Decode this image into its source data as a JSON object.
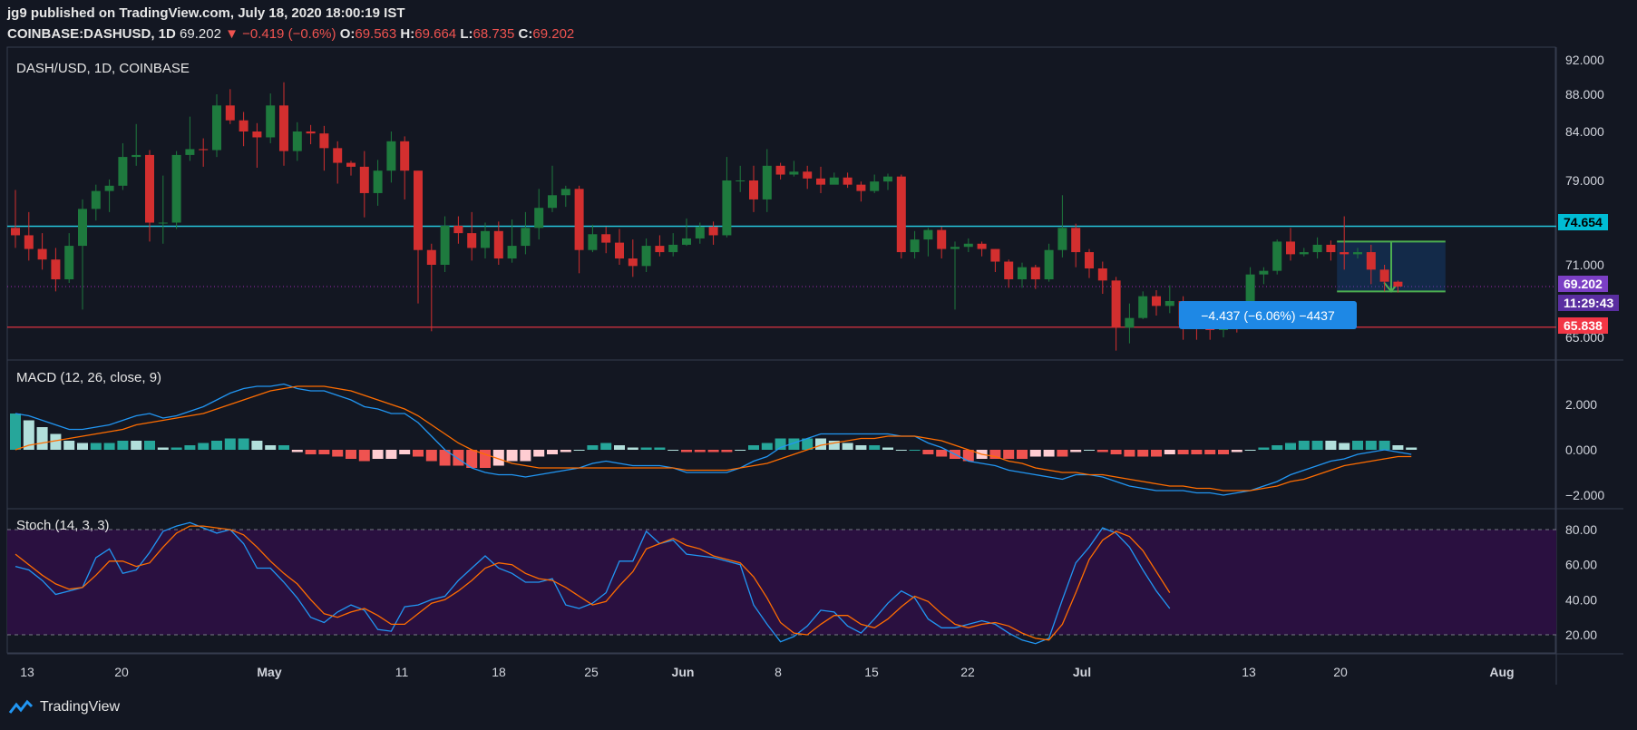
{
  "header": {
    "publisher_line": "jg9 published on TradingView.com, July 18, 2020 18:00:19 IST",
    "symbol": "COINBASE:DASHUSD, 1D",
    "last": "69.202",
    "change": "▼ −0.419 (−0.6%)",
    "o_label": "O:",
    "o": "69.563",
    "h_label": "H:",
    "h": "69.664",
    "l_label": "L:",
    "l": "68.735",
    "c_label": "C:",
    "c": "69.202"
  },
  "price_panel": {
    "title": "DASH/USD, 1D, COINBASE",
    "yticks": [
      92.0,
      88.0,
      84.0,
      79.0,
      71.0,
      65.0
    ],
    "ytick_labels": [
      "92.000",
      "88.000",
      "84.000",
      "79.000",
      "71.000",
      "65.000"
    ],
    "resistance": {
      "value": 74.654,
      "label": "74.654",
      "color": "#26c6da"
    },
    "support": {
      "value": 65.838,
      "label": "65.838",
      "color": "#f23645"
    },
    "last_price": {
      "value": 69.202,
      "label": "69.202",
      "color": "#7b3fc4"
    },
    "countdown": "11:29:43",
    "measure_label": "−4.437 (−6.06%) −4437"
  },
  "macd_panel": {
    "title": "MACD (12, 26, close, 9)",
    "ytick_labels": [
      "2.000",
      "0.000",
      "−2.000"
    ]
  },
  "stoch_panel": {
    "title": "Stoch (14, 3, 3)",
    "ytick_labels": [
      "80.00",
      "60.00",
      "40.00",
      "20.00"
    ]
  },
  "xaxis": {
    "labels": [
      "13",
      "20",
      "May",
      "11",
      "18",
      "25",
      "Jun",
      "8",
      "15",
      "22",
      "Jul",
      "13",
      "20",
      "Aug"
    ],
    "bold": [
      "May",
      "Jun",
      "Jul",
      "Aug"
    ]
  },
  "footer": {
    "brand": "TradingView"
  },
  "colors": {
    "up": "#26a69a",
    "down": "#ef5350",
    "candle_up": "#1b5e20",
    "candle_down": "#c62828",
    "macd": "#2196f3",
    "signal": "#ff6d00",
    "stoch_k": "#2196f3",
    "stoch_d": "#ff6d00",
    "hist_pos_strong": "#26a69a",
    "hist_pos_weak": "#b2dfdb",
    "hist_neg_strong": "#ef5350",
    "hist_neg_weak": "#ffcdd2",
    "stoch_band": "#2a1040"
  },
  "chart_data": {
    "type": "candlestick",
    "title": "DASH/USD, 1D, COINBASE",
    "start_date": "2020-04-12",
    "candles": [
      [
        74.5,
        73.8,
        78.1,
        72.6
      ],
      [
        73.8,
        72.5,
        76.0,
        71.4
      ],
      [
        72.5,
        71.5,
        74.0,
        70.6
      ],
      [
        71.5,
        69.8,
        72.6,
        68.8
      ],
      [
        69.8,
        72.8,
        74.0,
        69.5
      ],
      [
        72.8,
        76.3,
        77.2,
        67.3
      ],
      [
        76.3,
        78.0,
        78.6,
        75.2
      ],
      [
        78.0,
        78.5,
        79.1,
        76.0
      ],
      [
        78.5,
        81.4,
        82.8,
        78.1
      ],
      [
        81.4,
        81.6,
        84.8,
        80.5
      ],
      [
        81.6,
        75.0,
        82.1,
        73.2
      ],
      [
        75.0,
        75.0,
        79.5,
        73.0
      ],
      [
        75.0,
        81.6,
        82.0,
        74.4
      ],
      [
        81.6,
        82.2,
        85.6,
        81.0
      ],
      [
        82.2,
        82.1,
        83.3,
        80.4
      ],
      [
        82.1,
        86.8,
        88.0,
        81.4
      ],
      [
        86.8,
        85.2,
        88.6,
        84.8
      ],
      [
        85.2,
        84.0,
        86.1,
        82.5
      ],
      [
        84.0,
        83.4,
        84.9,
        80.3
      ],
      [
        83.4,
        86.8,
        88.1,
        82.8
      ],
      [
        86.8,
        82.0,
        89.4,
        80.5
      ],
      [
        82.0,
        84.0,
        85.0,
        81.0
      ],
      [
        84.0,
        83.8,
        84.7,
        82.7
      ],
      [
        83.8,
        82.3,
        84.6,
        80.0
      ],
      [
        82.3,
        80.8,
        83.0,
        78.7
      ],
      [
        80.8,
        80.4,
        81.0,
        79.5
      ],
      [
        80.4,
        77.8,
        82.0,
        75.5
      ],
      [
        77.8,
        80.0,
        81.1,
        76.6
      ],
      [
        80.0,
        83.0,
        84.0,
        78.8
      ],
      [
        83.0,
        80.0,
        83.5,
        77.2
      ],
      [
        80.0,
        72.4,
        80.0,
        67.8
      ],
      [
        72.4,
        71.0,
        73.0,
        65.5
      ],
      [
        71.0,
        74.7,
        75.6,
        70.4
      ],
      [
        74.7,
        74.0,
        75.6,
        73.0
      ],
      [
        74.0,
        72.6,
        76.0,
        71.4
      ],
      [
        72.6,
        74.2,
        75.0,
        71.6
      ],
      [
        74.2,
        71.6,
        75.1,
        71.0
      ],
      [
        71.6,
        72.8,
        75.3,
        71.2
      ],
      [
        72.8,
        74.5,
        76.0,
        72.0
      ],
      [
        74.5,
        76.4,
        78.2,
        73.4
      ],
      [
        76.4,
        77.6,
        80.5,
        76.0
      ],
      [
        77.6,
        78.2,
        78.5,
        76.5
      ],
      [
        78.2,
        72.4,
        78.5,
        70.3
      ],
      [
        72.4,
        73.9,
        74.8,
        72.2
      ],
      [
        73.9,
        73.1,
        74.6,
        72.1
      ],
      [
        73.1,
        71.6,
        74.4,
        71.0
      ],
      [
        71.6,
        70.9,
        73.4,
        70.0
      ],
      [
        70.9,
        72.8,
        73.5,
        70.4
      ],
      [
        72.8,
        72.2,
        73.8,
        71.8
      ],
      [
        72.2,
        72.9,
        74.0,
        71.8
      ],
      [
        72.9,
        73.5,
        75.4,
        72.8
      ],
      [
        73.5,
        74.6,
        75.0,
        73.0
      ],
      [
        74.6,
        73.8,
        75.1,
        72.9
      ],
      [
        73.8,
        79.0,
        81.4,
        73.6
      ],
      [
        79.0,
        79.0,
        80.5,
        77.9
      ],
      [
        79.0,
        77.2,
        80.5,
        76.0
      ],
      [
        77.2,
        80.5,
        82.2,
        76.0
      ],
      [
        80.5,
        79.6,
        80.8,
        79.1
      ],
      [
        79.6,
        79.9,
        81.0,
        79.4
      ],
      [
        79.9,
        79.2,
        80.5,
        78.2
      ],
      [
        79.2,
        78.6,
        80.4,
        77.8
      ],
      [
        78.6,
        79.3,
        79.8,
        78.7
      ],
      [
        79.3,
        78.6,
        79.8,
        78.3
      ],
      [
        78.6,
        78.0,
        78.9,
        77.0
      ],
      [
        78.0,
        78.9,
        79.6,
        77.8
      ],
      [
        78.9,
        79.4,
        79.7,
        78.1
      ],
      [
        79.4,
        72.2,
        79.6,
        71.6
      ],
      [
        72.2,
        73.4,
        74.2,
        71.6
      ],
      [
        73.4,
        74.3,
        74.5,
        71.8
      ],
      [
        74.3,
        72.5,
        74.6,
        71.6
      ],
      [
        72.5,
        72.7,
        73.2,
        67.3
      ],
      [
        72.7,
        73.0,
        73.5,
        72.2
      ],
      [
        73.0,
        72.5,
        73.2,
        71.8
      ],
      [
        72.5,
        71.3,
        72.5,
        70.4
      ],
      [
        71.3,
        69.8,
        71.5,
        69.1
      ],
      [
        69.8,
        70.8,
        71.2,
        69.1
      ],
      [
        70.8,
        69.8,
        71.0,
        69.0
      ],
      [
        69.8,
        72.4,
        73.0,
        69.6
      ],
      [
        72.4,
        74.5,
        77.6,
        71.7
      ],
      [
        74.5,
        72.2,
        74.9,
        70.8
      ],
      [
        72.2,
        70.7,
        72.5,
        69.9
      ],
      [
        70.7,
        69.7,
        71.3,
        68.6
      ],
      [
        69.7,
        65.8,
        70.0,
        63.9
      ],
      [
        65.8,
        66.6,
        67.8,
        64.5
      ],
      [
        66.6,
        68.4,
        68.8,
        66.5
      ],
      [
        68.4,
        67.6,
        68.9,
        66.8
      ],
      [
        67.6,
        68.0,
        69.3,
        67.0
      ],
      [
        68.0,
        66.0,
        68.4,
        64.8
      ],
      [
        66.0,
        65.8,
        66.6,
        64.8
      ],
      [
        65.8,
        65.6,
        66.5,
        64.8
      ],
      [
        65.6,
        67.0,
        67.8,
        65.0
      ],
      [
        67.0,
        66.4,
        67.5,
        65.4
      ],
      [
        66.4,
        70.2,
        70.8,
        65.8
      ],
      [
        70.2,
        70.5,
        70.8,
        69.4
      ],
      [
        70.5,
        73.2,
        73.4,
        70.2
      ],
      [
        73.2,
        72.0,
        74.5,
        71.4
      ],
      [
        72.0,
        72.2,
        72.6,
        71.8
      ],
      [
        72.2,
        72.9,
        73.6,
        71.6
      ],
      [
        72.9,
        72.2,
        73.3,
        71.4
      ],
      [
        72.2,
        72.0,
        75.6,
        70.6
      ],
      [
        72.0,
        72.2,
        72.6,
        71.6
      ],
      [
        72.2,
        70.6,
        72.9,
        69.4
      ],
      [
        70.6,
        69.6,
        71.0,
        68.8
      ],
      [
        69.6,
        69.2,
        69.7,
        68.7
      ]
    ],
    "resistance": 74.654,
    "support": 65.838,
    "measure": {
      "from": 73.2,
      "to": 68.8,
      "text": "−4.437 (−6.06%) −4437"
    },
    "macd": [
      1.6,
      1.5,
      1.3,
      1.1,
      0.9,
      0.9,
      1.0,
      1.1,
      1.3,
      1.5,
      1.6,
      1.4,
      1.5,
      1.7,
      1.9,
      2.2,
      2.5,
      2.7,
      2.8,
      2.8,
      2.9,
      2.7,
      2.6,
      2.6,
      2.4,
      2.2,
      1.9,
      1.8,
      1.6,
      1.6,
      1.2,
      0.6,
      0.0,
      -0.4,
      -0.8,
      -1.0,
      -1.1,
      -1.1,
      -1.2,
      -1.1,
      -1.0,
      -0.9,
      -0.8,
      -0.6,
      -0.5,
      -0.6,
      -0.7,
      -0.7,
      -0.7,
      -0.8,
      -1.0,
      -1.0,
      -1.0,
      -1.0,
      -0.8,
      -0.5,
      -0.3,
      0.1,
      0.3,
      0.5,
      0.7,
      0.7,
      0.7,
      0.7,
      0.7,
      0.7,
      0.6,
      0.6,
      0.3,
      0.1,
      -0.2,
      -0.5,
      -0.6,
      -0.7,
      -0.9,
      -1.0,
      -1.1,
      -1.2,
      -1.3,
      -1.1,
      -1.1,
      -1.2,
      -1.4,
      -1.6,
      -1.7,
      -1.8,
      -1.8,
      -1.8,
      -1.9,
      -1.9,
      -2.0,
      -1.9,
      -1.8,
      -1.6,
      -1.4,
      -1.1,
      -0.9,
      -0.7,
      -0.5,
      -0.4,
      -0.2,
      -0.1,
      0.0,
      -0.1,
      -0.2
    ],
    "signal": [
      0.0,
      0.2,
      0.3,
      0.4,
      0.5,
      0.6,
      0.7,
      0.8,
      0.9,
      1.1,
      1.2,
      1.3,
      1.4,
      1.5,
      1.6,
      1.8,
      2.0,
      2.2,
      2.4,
      2.6,
      2.7,
      2.8,
      2.8,
      2.8,
      2.7,
      2.6,
      2.4,
      2.2,
      2.0,
      1.8,
      1.5,
      1.1,
      0.7,
      0.3,
      0.0,
      -0.2,
      -0.4,
      -0.6,
      -0.7,
      -0.8,
      -0.8,
      -0.8,
      -0.8,
      -0.8,
      -0.8,
      -0.8,
      -0.8,
      -0.8,
      -0.8,
      -0.8,
      -0.9,
      -0.9,
      -0.9,
      -0.9,
      -0.8,
      -0.7,
      -0.6,
      -0.4,
      -0.2,
      0.0,
      0.2,
      0.3,
      0.4,
      0.5,
      0.5,
      0.6,
      0.6,
      0.6,
      0.5,
      0.4,
      0.2,
      0.0,
      -0.2,
      -0.3,
      -0.5,
      -0.6,
      -0.8,
      -0.9,
      -1.0,
      -1.0,
      -1.1,
      -1.1,
      -1.2,
      -1.3,
      -1.4,
      -1.5,
      -1.6,
      -1.6,
      -1.7,
      -1.7,
      -1.8,
      -1.8,
      -1.8,
      -1.7,
      -1.6,
      -1.4,
      -1.3,
      -1.1,
      -0.9,
      -0.7,
      -0.6,
      -0.5,
      -0.4,
      -0.3,
      -0.3
    ],
    "stoch_k": [
      59,
      57,
      51,
      43,
      45,
      47,
      64,
      69,
      55,
      57,
      67,
      79,
      82,
      84,
      81,
      78,
      80,
      72,
      58,
      58,
      50,
      41,
      30,
      27,
      33,
      37,
      34,
      23,
      22,
      36,
      37,
      40,
      42,
      51,
      58,
      65,
      58,
      55,
      50,
      50,
      52,
      37,
      35,
      38,
      44,
      62,
      62,
      79,
      72,
      74,
      66,
      65,
      64,
      62,
      60,
      37,
      26,
      16,
      19,
      25,
      34,
      33,
      25,
      21,
      29,
      38,
      45,
      41,
      29,
      24,
      24,
      26,
      28,
      26,
      21,
      17,
      15,
      18,
      40,
      61,
      70,
      81,
      78,
      70,
      57,
      45,
      35
    ],
    "stoch_d": [
      66,
      60,
      54,
      49,
      46,
      47,
      54,
      62,
      62,
      59,
      61,
      70,
      78,
      82,
      82,
      81,
      80,
      77,
      70,
      62,
      55,
      49,
      40,
      32,
      30,
      33,
      35,
      31,
      26,
      26,
      32,
      38,
      40,
      45,
      51,
      58,
      61,
      60,
      55,
      52,
      51,
      47,
      42,
      37,
      39,
      48,
      56,
      69,
      72,
      75,
      71,
      69,
      65,
      63,
      61,
      53,
      41,
      27,
      21,
      20,
      26,
      31,
      31,
      26,
      24,
      29,
      36,
      42,
      39,
      32,
      26,
      24,
      26,
      27,
      25,
      21,
      18,
      17,
      26,
      44,
      63,
      74,
      79,
      76,
      68,
      56,
      44
    ]
  }
}
